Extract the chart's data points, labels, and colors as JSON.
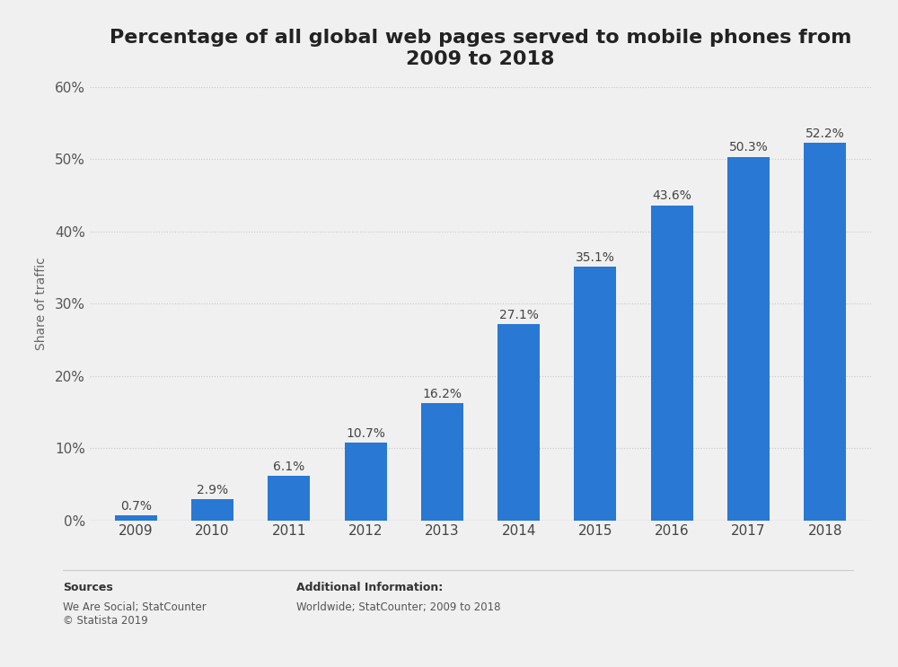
{
  "title": "Percentage of all global web pages served to mobile phones from\n2009 to 2018",
  "years": [
    "2009",
    "2010",
    "2011",
    "2012",
    "2013",
    "2014",
    "2015",
    "2016",
    "2017",
    "2018"
  ],
  "values": [
    0.7,
    2.9,
    6.1,
    10.7,
    16.2,
    27.1,
    35.1,
    43.6,
    50.3,
    52.2
  ],
  "bar_color": "#2878d4",
  "background_color": "#f0f0f0",
  "plot_bg_color": "#f0f0f0",
  "col_sep_color": "#e0e0e0",
  "grid_color": "#c8c8c8",
  "ylabel": "Share of traffic",
  "ylim": [
    0,
    60
  ],
  "yticks": [
    0,
    10,
    20,
    30,
    40,
    50,
    60
  ],
  "title_fontsize": 16,
  "bar_label_fontsize": 10,
  "tick_fontsize": 11,
  "ylabel_fontsize": 10,
  "source_text_bold": "Sources",
  "source_line1": "We Are Social; StatCounter",
  "source_line2": "© Statista 2019",
  "additional_bold": "Additional Information:",
  "additional_text": "Worldwide; StatCounter; 2009 to 2018"
}
